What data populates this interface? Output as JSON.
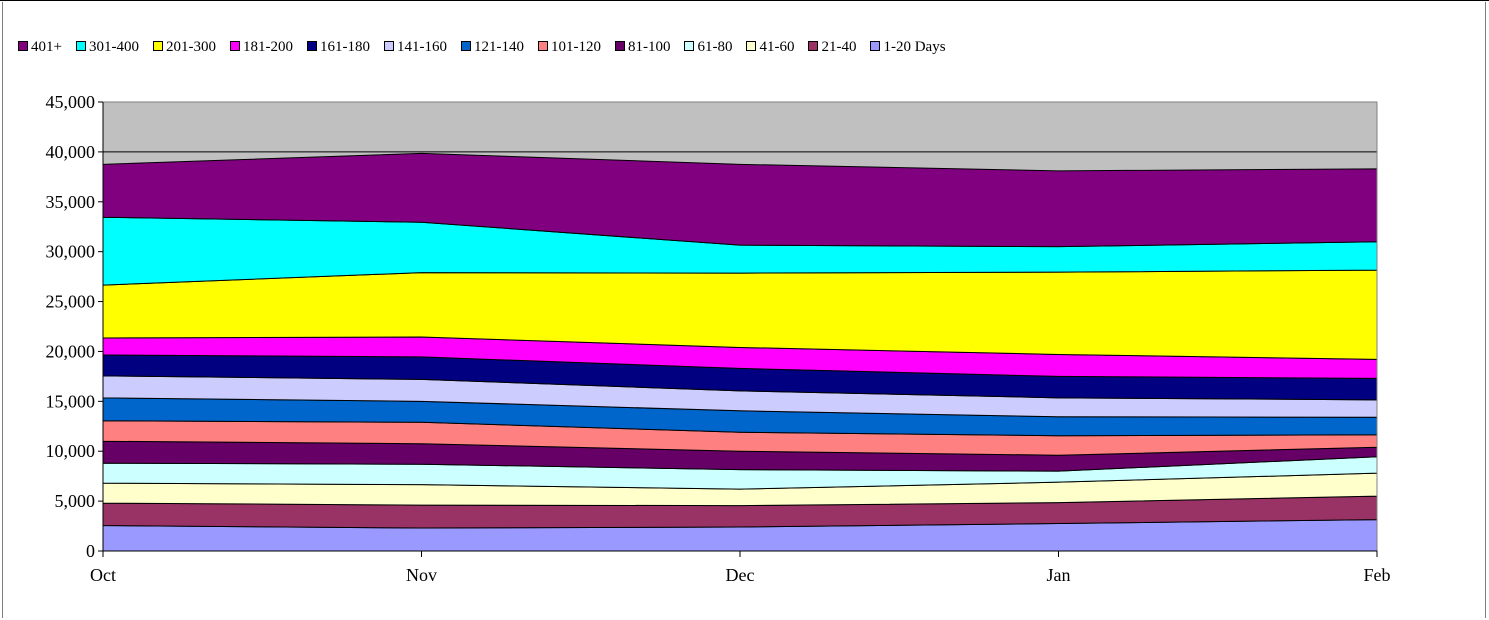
{
  "chart_data": {
    "type": "area",
    "stacked": true,
    "categories": [
      "Oct",
      "Nov",
      "Dec",
      "Jan",
      "Feb"
    ],
    "ylim": [
      0,
      45000
    ],
    "yticks": [
      0,
      5000,
      10000,
      15000,
      20000,
      25000,
      30000,
      35000,
      40000,
      45000
    ],
    "ytick_labels": [
      "0",
      "5,000",
      "10,000",
      "15,000",
      "20,000",
      "25,000",
      "30,000",
      "35,000",
      "40,000",
      "45,000"
    ],
    "grid": true,
    "plot_background": "#c0c0c0",
    "legend_position": "top",
    "legend_order": [
      "401+",
      "301-400",
      "201-300",
      "181-200",
      "161-180",
      "141-160",
      "121-140",
      "101-120",
      "81-100",
      "61-80",
      "41-60",
      "21-40",
      "1-20 Days"
    ],
    "series": [
      {
        "name": "1-20 Days",
        "color": "#9999ff",
        "values": [
          2550,
          2300,
          2400,
          2750,
          3150
        ]
      },
      {
        "name": "21-40",
        "color": "#993366",
        "values": [
          2250,
          2300,
          2150,
          2100,
          2350
        ]
      },
      {
        "name": "41-60",
        "color": "#ffffcc",
        "values": [
          2000,
          2050,
          1650,
          2050,
          2300
        ]
      },
      {
        "name": "61-80",
        "color": "#ccffff",
        "values": [
          2000,
          2050,
          1950,
          1100,
          1650
        ]
      },
      {
        "name": "81-100",
        "color": "#660066",
        "values": [
          2200,
          2050,
          1850,
          1600,
          950
        ]
      },
      {
        "name": "101-120",
        "color": "#ff8080",
        "values": [
          2050,
          2150,
          1900,
          1950,
          1250
        ]
      },
      {
        "name": "121-140",
        "color": "#0066cc",
        "values": [
          2300,
          2100,
          2150,
          1900,
          1750
        ]
      },
      {
        "name": "141-160",
        "color": "#ccccff",
        "values": [
          2200,
          2200,
          2000,
          1900,
          1750
        ]
      },
      {
        "name": "161-180",
        "color": "#000080",
        "values": [
          2100,
          2250,
          2250,
          2150,
          2150
        ]
      },
      {
        "name": "181-200",
        "color": "#ff00ff",
        "values": [
          1700,
          2000,
          2100,
          2200,
          1900
        ]
      },
      {
        "name": "201-300",
        "color": "#ffff00",
        "values": [
          5300,
          6450,
          7450,
          8250,
          8950
        ]
      },
      {
        "name": "301-400",
        "color": "#00ffff",
        "values": [
          6800,
          5050,
          2800,
          2550,
          2850
        ]
      },
      {
        "name": "401+",
        "color": "#800080",
        "values": [
          5300,
          6900,
          8100,
          7600,
          7300
        ]
      }
    ]
  }
}
